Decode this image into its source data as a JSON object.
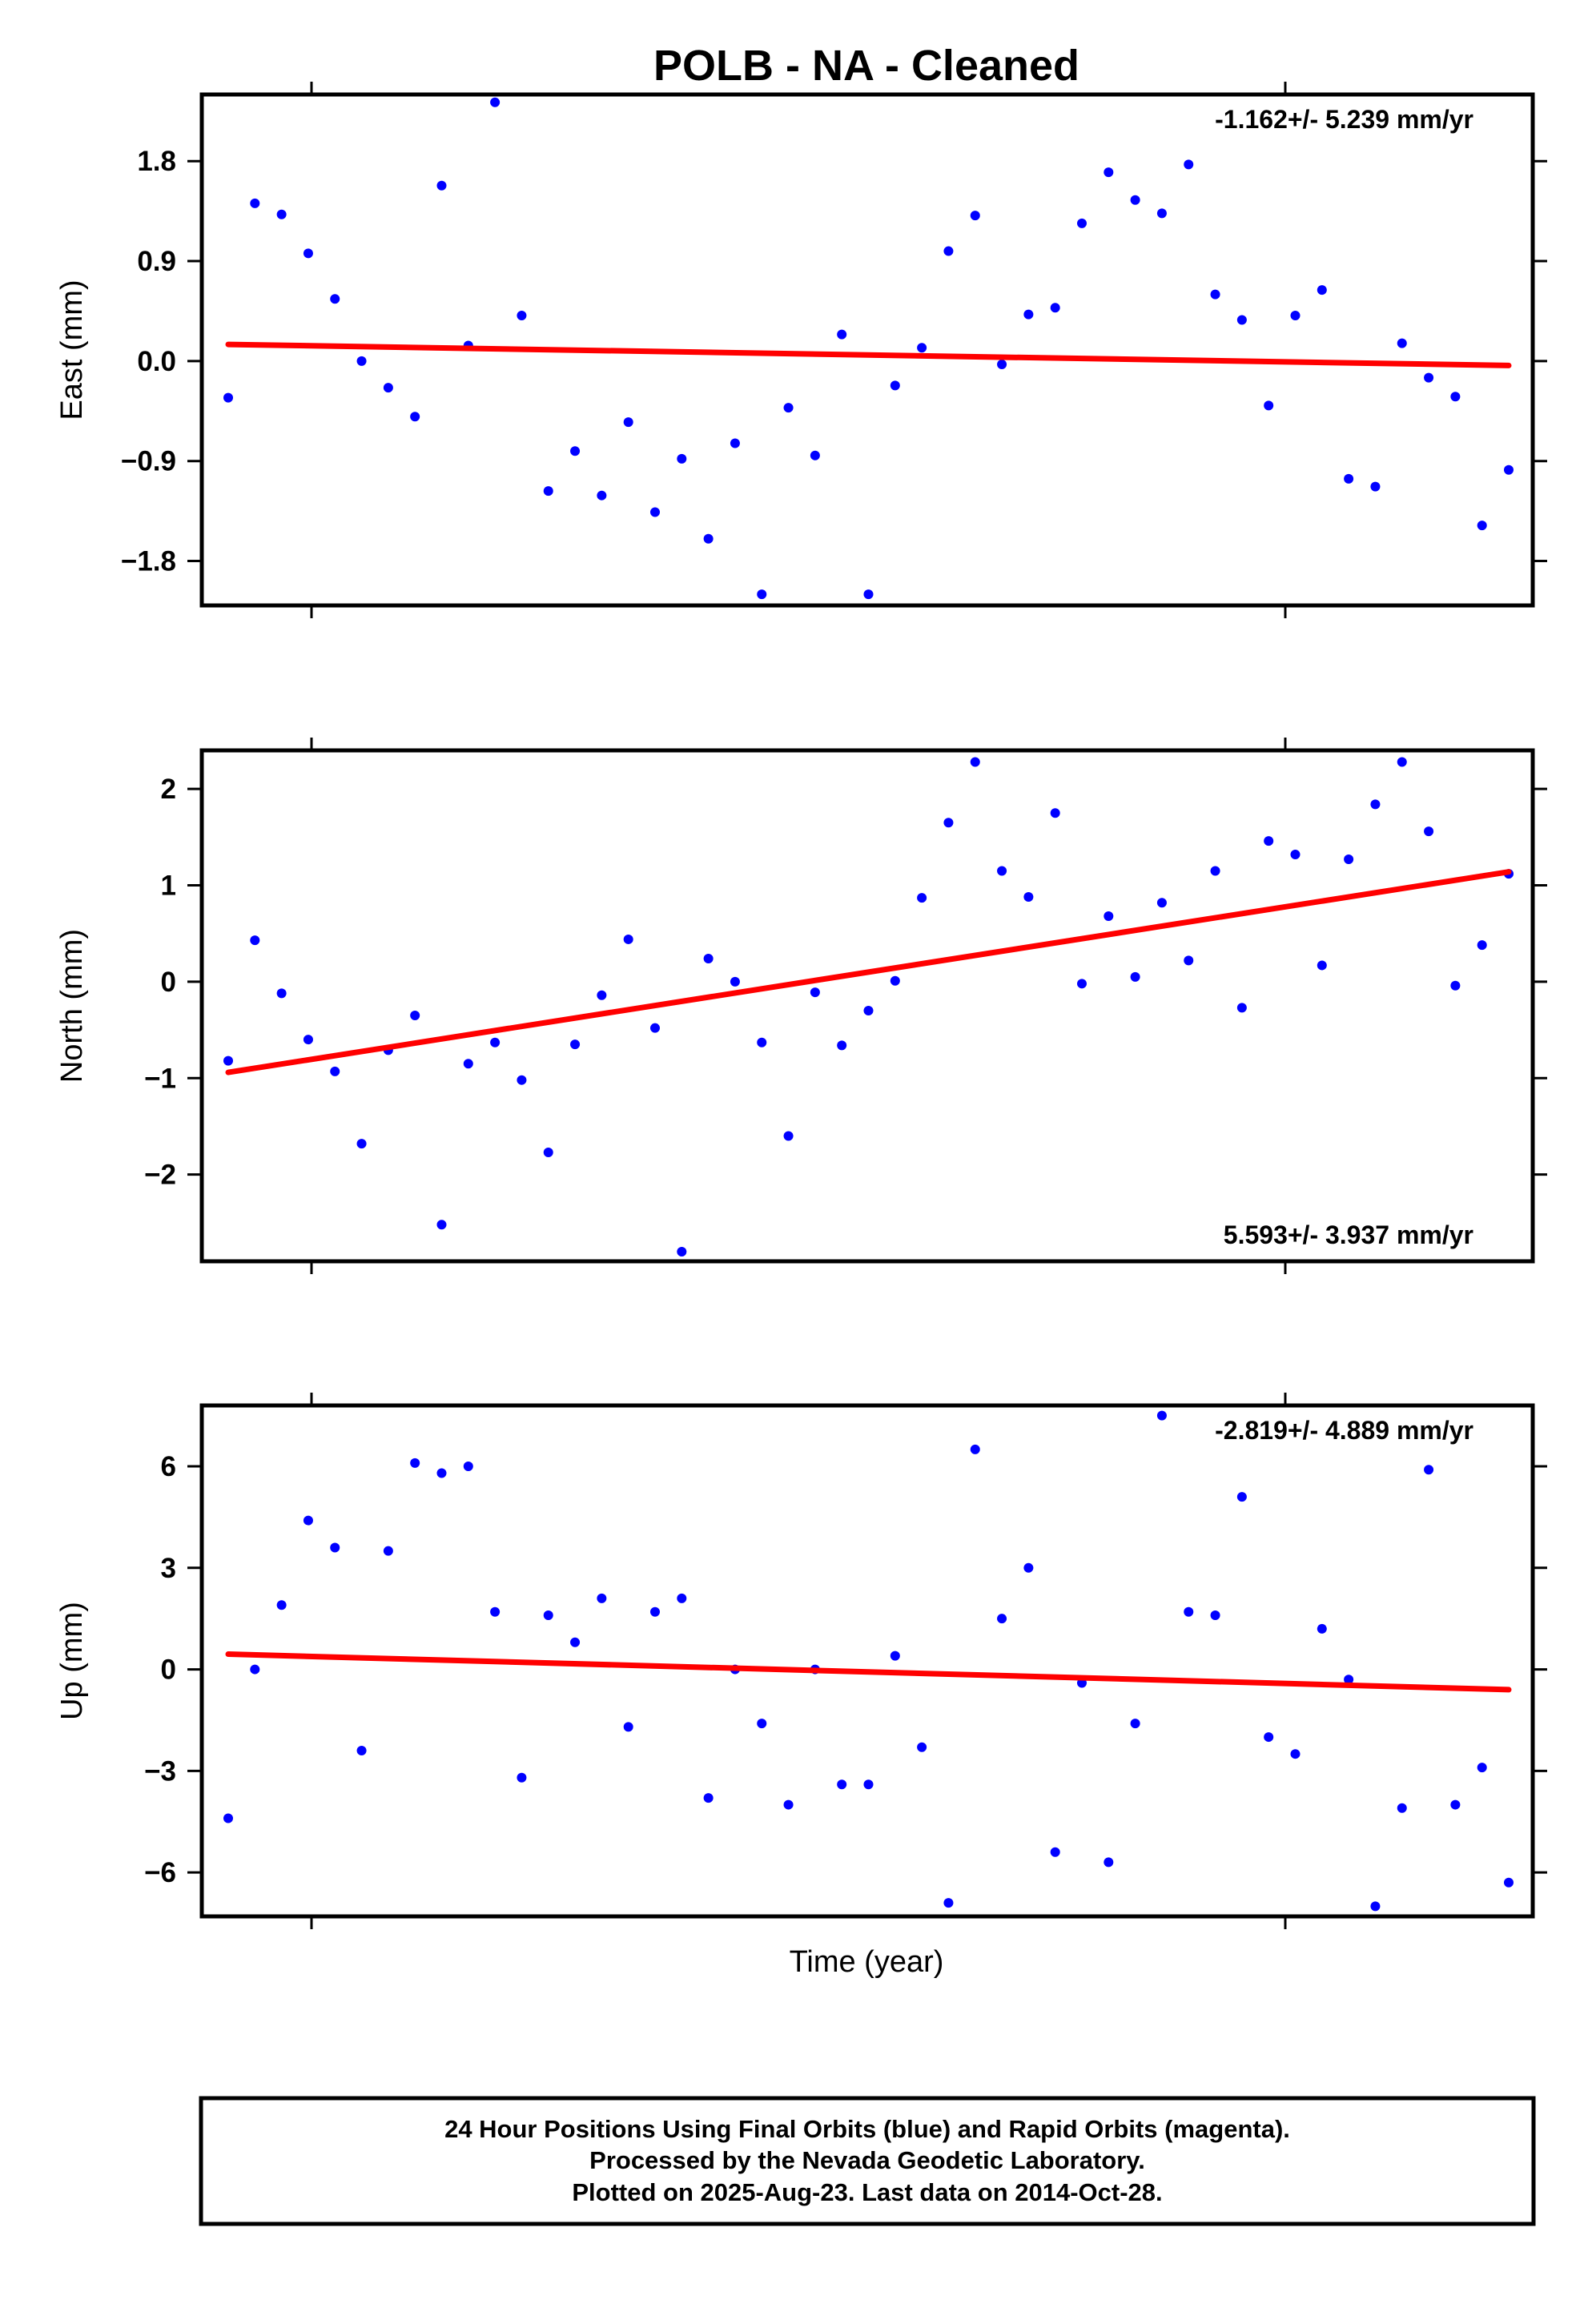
{
  "title": "POLB  - NA - Cleaned",
  "xlabel": "Time (year)",
  "footer": {
    "line1": "24 Hour Positions Using Final Orbits (blue) and Rapid Orbits (magenta).",
    "line2": "Processed by the Nevada Geodetic Laboratory.",
    "line3": "Plotted on 2025-Aug-23. Last data on 2014-Oct-28."
  },
  "colors": {
    "points": "#0000ff",
    "trend": "#ff0000",
    "frame": "#000000"
  },
  "chart_data": [
    {
      "type": "scatter",
      "ylabel": "East (mm)",
      "rate_label": "-1.162+/- 5.239 mm/yr",
      "rate_position": "top-right",
      "ylim": [
        -2.2,
        2.4
      ],
      "yticks": [
        -1.8,
        -0.9,
        0.0,
        0.9,
        1.8
      ],
      "ytick_labels": [
        "−1.8",
        "−0.9",
        "0.0",
        "0.9",
        "1.8"
      ],
      "y": [
        -0.33,
        1.42,
        1.32,
        0.97,
        0.56,
        0.0,
        -0.24,
        -0.5,
        1.58,
        0.14,
        2.33,
        0.41,
        -1.17,
        -0.81,
        -1.21,
        -0.55,
        -1.36,
        -0.88,
        -1.6,
        -0.74,
        -2.1,
        -0.42,
        -0.85,
        0.24,
        -2.1,
        -0.22,
        0.12,
        0.99,
        1.31,
        -0.03,
        0.42,
        0.48,
        1.24,
        1.7,
        1.45,
        1.33,
        1.77,
        0.6,
        0.37,
        -0.4,
        0.41,
        0.64,
        -1.06,
        -1.13,
        0.16,
        -0.15,
        -0.32,
        -1.48,
        -0.98
      ],
      "trend": {
        "start": 0.15,
        "end": -0.04
      },
      "grid": false
    },
    {
      "type": "scatter",
      "ylabel": "North (mm)",
      "rate_label": "5.593+/- 3.937 mm/yr",
      "rate_position": "bottom-right",
      "ylim": [
        -2.9,
        2.4
      ],
      "yticks": [
        -2,
        -1,
        0,
        1,
        2
      ],
      "ytick_labels": [
        "−2",
        "−1",
        "0",
        "1",
        "2"
      ],
      "y": [
        -0.82,
        0.43,
        -0.12,
        -0.6,
        -0.93,
        -1.68,
        -0.71,
        -0.35,
        -2.52,
        -0.85,
        -0.63,
        -1.02,
        -1.77,
        -0.65,
        -0.14,
        0.44,
        -0.48,
        -2.8,
        0.24,
        0.0,
        -0.63,
        -1.6,
        -0.11,
        -0.66,
        -0.3,
        0.01,
        0.87,
        1.65,
        2.28,
        1.15,
        0.88,
        1.75,
        -0.02,
        0.68,
        0.05,
        0.82,
        0.22,
        1.15,
        -0.27,
        1.46,
        1.32,
        0.17,
        1.27,
        1.84,
        2.28,
        1.56,
        -0.04,
        0.38,
        1.12
      ],
      "trend": {
        "start": -0.94,
        "end": 1.14
      },
      "grid": false
    },
    {
      "type": "scatter",
      "ylabel": "Up (mm)",
      "rate_label": "-2.819+/- 4.889 mm/yr",
      "rate_position": "top-right",
      "ylim": [
        -7.3,
        7.8
      ],
      "yticks": [
        -6,
        -3,
        0,
        3,
        6
      ],
      "ytick_labels": [
        "−6",
        "−3",
        "0",
        "3",
        "6"
      ],
      "y": [
        -4.4,
        0.0,
        1.9,
        4.4,
        3.6,
        -2.4,
        3.5,
        6.1,
        5.8,
        6.0,
        1.7,
        -3.2,
        1.6,
        0.8,
        2.1,
        -1.7,
        1.7,
        2.1,
        -3.8,
        0.0,
        -1.6,
        -4.0,
        0.0,
        -3.4,
        -3.4,
        0.4,
        -2.3,
        -6.9,
        6.5,
        1.5,
        3.0,
        -5.4,
        -0.4,
        -5.7,
        -1.6,
        7.5,
        1.7,
        1.6,
        5.1,
        -2.0,
        -2.5,
        1.2,
        -0.3,
        -7.0,
        -4.1,
        5.9,
        -4.0,
        -2.9,
        -6.3
      ],
      "trend": {
        "start": 0.45,
        "end": -0.6
      },
      "grid": false
    }
  ]
}
